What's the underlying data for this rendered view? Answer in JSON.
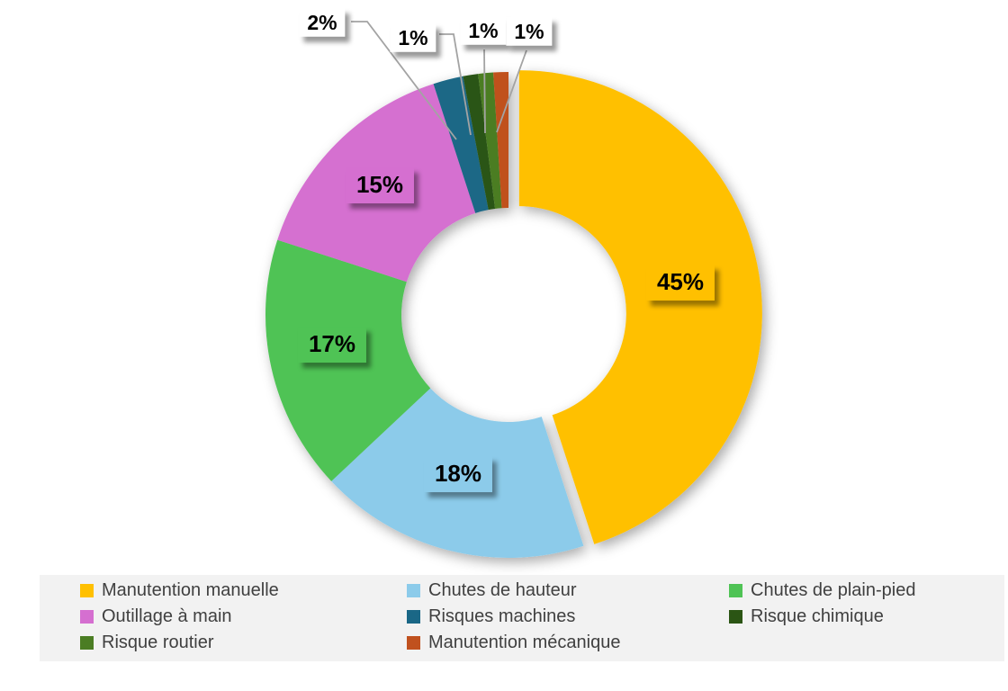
{
  "chart_data": {
    "type": "pie",
    "subtype": "donut",
    "title": "",
    "categories": [
      "Manutention manuelle",
      "Chutes de hauteur",
      "Chutes de plain-pied",
      "Outillage à main",
      "Risques machines",
      "Risque chimique",
      "Risque routier",
      "Manutention mécanique"
    ],
    "values": [
      45,
      18,
      17,
      15,
      2,
      1,
      1,
      1
    ],
    "value_labels": [
      "45%",
      "18%",
      "17%",
      "15%",
      "2%",
      "1%",
      "1%",
      "1%"
    ],
    "colors": [
      "#FFC000",
      "#8CCBEA",
      "#4FC355",
      "#D56FD0",
      "#1A6786",
      "#2B5514",
      "#4B7D23",
      "#C0511E"
    ],
    "start_angle_deg": 0,
    "direction": "clockwise",
    "donut_hole_ratio": 0.44,
    "exploded_slice_index": 0,
    "legend_position": "bottom",
    "label_style": {
      "large_label_background": "slice-color",
      "small_label_background": "#FFFFFF",
      "text_color": "#000000",
      "leader_line_color": "#A3A3A3"
    },
    "legend_style": {
      "background": "#F2F2F2",
      "text_color": "#404040"
    }
  }
}
